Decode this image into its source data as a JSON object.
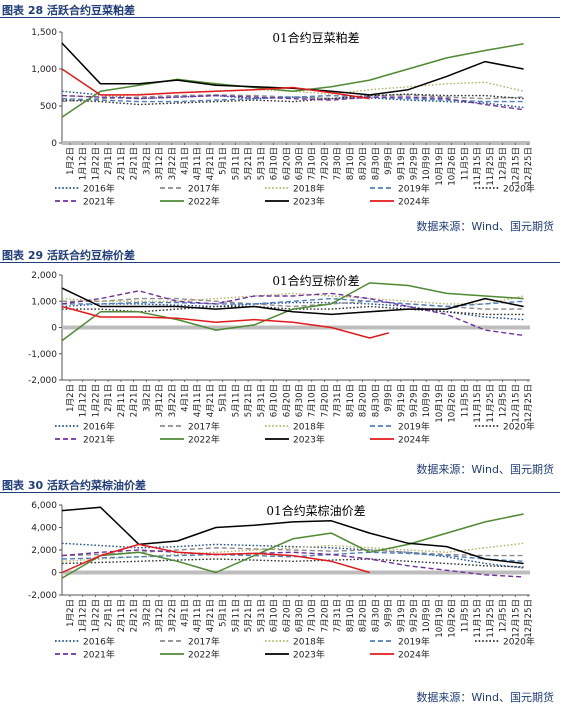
{
  "charts": [
    {
      "fig_label": "图表 28 活跃合约豆菜粕差",
      "source": "数据来源：Wind、国元期货"
    },
    {
      "fig_label": "图表 29 活跃合约豆棕价差",
      "source": "数据来源：Wind、国元期货"
    },
    {
      "fig_label": "图表 30 活跃合约菜棕油价差",
      "source": "数据来源：Wind、国元期货"
    }
  ],
  "chart_data": [
    {
      "type": "line",
      "title": "01合约豆菜粕差",
      "ylim": [
        0,
        1500
      ],
      "yticks": [
        0,
        500,
        1000,
        1500
      ],
      "ytick_labels": [
        "0",
        "500",
        "1,000",
        "1,500"
      ],
      "x_tick_labels": [
        "1月2日",
        "1月12日",
        "1月22日",
        "2月1日",
        "2月11日",
        "2月21日",
        "3月2日",
        "3月12日",
        "3月22日",
        "4月1日",
        "4月11日",
        "4月21日",
        "5月1日",
        "5月11日",
        "5月21日",
        "5月31日",
        "6月10日",
        "6月20日",
        "6月30日",
        "7月10日",
        "7月20日",
        "7月30日",
        "8月10日",
        "8月20日",
        "8月30日",
        "9月9日",
        "9月19日",
        "9月29日",
        "10月9日",
        "10月19日",
        "10月26日",
        "11月5日",
        "11月15日",
        "11月25日",
        "12月5日",
        "12月15日",
        "12月25日"
      ],
      "x": [
        0,
        30,
        60,
        90,
        120,
        150,
        180,
        210,
        240,
        270,
        300,
        330,
        360
      ],
      "series": [
        {
          "name": "2016年",
          "color": "#1f4e9a",
          "style": "dot",
          "values": [
            700,
            650,
            600,
            620,
            640,
            600,
            620,
            600,
            610,
            580,
            560,
            540,
            480
          ]
        },
        {
          "name": "2017年",
          "color": "#8c8c8c",
          "style": "dash",
          "values": [
            560,
            600,
            620,
            640,
            650,
            640,
            620,
            600,
            640,
            650,
            620,
            600,
            620
          ]
        },
        {
          "name": "2018年",
          "color": "#b5b56a",
          "style": "dot",
          "values": [
            640,
            620,
            660,
            680,
            700,
            720,
            700,
            660,
            720,
            760,
            800,
            820,
            700
          ]
        },
        {
          "name": "2019年",
          "color": "#4f7fbf",
          "style": "dash",
          "values": [
            600,
            580,
            560,
            560,
            580,
            600,
            620,
            640,
            620,
            600,
            580,
            560,
            560
          ]
        },
        {
          "name": "2020年",
          "color": "#2f2f2f",
          "style": "dot",
          "values": [
            580,
            560,
            520,
            540,
            560,
            580,
            560,
            600,
            640,
            660,
            640,
            640,
            600
          ]
        },
        {
          "name": "2021年",
          "color": "#7030a0",
          "style": "dash",
          "values": [
            640,
            620,
            600,
            620,
            640,
            620,
            600,
            580,
            620,
            620,
            600,
            520,
            450
          ]
        },
        {
          "name": "2022年",
          "color": "#4f8a32",
          "style": "solid",
          "values": [
            350,
            700,
            780,
            860,
            800,
            750,
            700,
            760,
            850,
            1000,
            1150,
            1250,
            1340
          ]
        },
        {
          "name": "2023年",
          "color": "#000000",
          "style": "solid",
          "values": [
            1350,
            800,
            800,
            850,
            780,
            760,
            740,
            700,
            650,
            720,
            900,
            1100,
            1000
          ]
        },
        {
          "name": "2024年",
          "color": "#e31a1c",
          "style": "solid",
          "values": [
            1000,
            650,
            650,
            680,
            700,
            720,
            750,
            680,
            600
          ],
          "x": [
            0,
            30,
            60,
            90,
            120,
            150,
            180,
            210,
            240
          ]
        }
      ]
    },
    {
      "type": "line",
      "title": "01合约豆棕价差",
      "ylim": [
        -2000,
        2000
      ],
      "yticks": [
        -2000,
        -1000,
        0,
        1000,
        2000
      ],
      "ytick_labels": [
        "-2,000",
        "-1,000",
        "0",
        "1,000",
        "2,000"
      ],
      "x_tick_labels": [
        "1月2日",
        "1月12日",
        "1月22日",
        "2月1日",
        "2月11日",
        "2月21日",
        "3月2日",
        "3月12日",
        "3月22日",
        "4月1日",
        "4月11日",
        "4月21日",
        "5月1日",
        "5月11日",
        "5月21日",
        "5月31日",
        "6月10日",
        "6月20日",
        "6月30日",
        "7月10日",
        "7月20日",
        "7月31日",
        "8月10日",
        "8月20日",
        "8月30日",
        "9月9日",
        "9月19日",
        "9月29日",
        "10月9日",
        "10月19日",
        "10月26日",
        "11月5日",
        "11月15日",
        "11月25日",
        "12月5日",
        "12月15日",
        "12月25日"
      ],
      "x": [
        0,
        30,
        60,
        90,
        120,
        150,
        180,
        210,
        240,
        270,
        300,
        330,
        360
      ],
      "series": [
        {
          "name": "2016年",
          "color": "#1f4e9a",
          "style": "dot",
          "values": [
            800,
            900,
            900,
            850,
            800,
            900,
            950,
            950,
            900,
            800,
            600,
            400,
            300
          ]
        },
        {
          "name": "2017年",
          "color": "#8c8c8c",
          "style": "dash",
          "values": [
            1000,
            1000,
            1100,
            1100,
            1000,
            900,
            800,
            900,
            1000,
            900,
            800,
            700,
            700
          ]
        },
        {
          "name": "2018年",
          "color": "#b5b56a",
          "style": "dot",
          "values": [
            1100,
            1000,
            1000,
            1000,
            1100,
            1200,
            1300,
            1200,
            1100,
            1000,
            900,
            900,
            1200
          ]
        },
        {
          "name": "2019年",
          "color": "#4f7fbf",
          "style": "dash",
          "values": [
            900,
            900,
            950,
            950,
            900,
            900,
            1000,
            1100,
            1000,
            900,
            800,
            900,
            1000
          ]
        },
        {
          "name": "2020年",
          "color": "#2f2f2f",
          "style": "dot",
          "values": [
            700,
            700,
            600,
            700,
            800,
            800,
            700,
            700,
            800,
            700,
            600,
            500,
            500
          ]
        },
        {
          "name": "2021年",
          "color": "#7030a0",
          "style": "dash",
          "values": [
            900,
            1100,
            1400,
            1000,
            900,
            1200,
            1200,
            1300,
            1100,
            800,
            500,
            -100,
            -300
          ]
        },
        {
          "name": "2022年",
          "color": "#4f8a32",
          "style": "solid",
          "values": [
            -500,
            600,
            600,
            300,
            -100,
            100,
            700,
            900,
            1700,
            1600,
            1300,
            1200,
            1100
          ]
        },
        {
          "name": "2023年",
          "color": "#000000",
          "style": "solid",
          "values": [
            1500,
            800,
            800,
            800,
            700,
            800,
            600,
            500,
            600,
            700,
            700,
            1100,
            800
          ]
        },
        {
          "name": "2024年",
          "color": "#e31a1c",
          "style": "solid",
          "values": [
            800,
            400,
            400,
            350,
            200,
            300,
            200,
            0,
            -400,
            -200
          ],
          "x": [
            0,
            30,
            60,
            90,
            120,
            150,
            180,
            210,
            240,
            255
          ]
        }
      ]
    },
    {
      "type": "line",
      "title": "01合约菜棕油价差",
      "ylim": [
        -2000,
        6000
      ],
      "yticks": [
        -2000,
        0,
        2000,
        4000,
        6000
      ],
      "ytick_labels": [
        "-2,000",
        "0",
        "2,000",
        "4,000",
        "6,000"
      ],
      "x_tick_labels": [
        "1月2日",
        "1月12日",
        "1月22日",
        "2月1日",
        "2月11日",
        "2月21日",
        "3月2日",
        "3月12日",
        "3月22日",
        "4月1日",
        "4月11日",
        "4月21日",
        "5月1日",
        "5月11日",
        "5月21日",
        "5月31日",
        "6月10日",
        "6月20日",
        "6月30日",
        "7月10日",
        "7月20日",
        "7月31日",
        "8月10日",
        "8月20日",
        "8月30日",
        "9月9日",
        "9月19日",
        "9月29日",
        "10月9日",
        "10月19日",
        "10月26日",
        "11月5日",
        "11月15日",
        "11月25日",
        "12月5日",
        "12月15日",
        "12月25日"
      ],
      "x": [
        0,
        30,
        60,
        90,
        120,
        150,
        180,
        210,
        240,
        270,
        300,
        330,
        360
      ],
      "series": [
        {
          "name": "2016年",
          "color": "#1f4e9a",
          "style": "dot",
          "values": [
            2600,
            2400,
            2200,
            2300,
            2500,
            2400,
            2300,
            2200,
            2000,
            1800,
            1400,
            800,
            400
          ]
        },
        {
          "name": "2017年",
          "color": "#8c8c8c",
          "style": "dash",
          "values": [
            1500,
            1600,
            1800,
            2000,
            2200,
            2100,
            2000,
            1900,
            2000,
            1800,
            1600,
            1500,
            1500
          ]
        },
        {
          "name": "2018年",
          "color": "#b5b56a",
          "style": "dot",
          "values": [
            1000,
            1200,
            1400,
            1600,
            1800,
            2000,
            2200,
            2400,
            2200,
            2000,
            1800,
            2200,
            2600
          ]
        },
        {
          "name": "2019年",
          "color": "#4f7fbf",
          "style": "dash",
          "values": [
            1200,
            1300,
            1400,
            1500,
            1600,
            1500,
            1400,
            1600,
            1800,
            1700,
            1500,
            1200,
            1000
          ]
        },
        {
          "name": "2020年",
          "color": "#2f2f2f",
          "style": "dot",
          "values": [
            800,
            900,
            1000,
            1100,
            1200,
            1100,
            1000,
            1100,
            1200,
            1000,
            800,
            600,
            500
          ]
        },
        {
          "name": "2021年",
          "color": "#7030a0",
          "style": "dash",
          "values": [
            1500,
            1800,
            2000,
            1800,
            1600,
            1700,
            1800,
            1600,
            1200,
            600,
            200,
            -200,
            -400
          ]
        },
        {
          "name": "2022年",
          "color": "#4f8a32",
          "style": "solid",
          "values": [
            -500,
            1500,
            1800,
            1000,
            0,
            1500,
            3000,
            3500,
            1800,
            2500,
            3500,
            4500,
            5200
          ]
        },
        {
          "name": "2023年",
          "color": "#000000",
          "style": "solid",
          "values": [
            5500,
            5800,
            2500,
            2800,
            4000,
            4200,
            4500,
            4600,
            3500,
            2600,
            2300,
            1200,
            800
          ]
        },
        {
          "name": "2024年",
          "color": "#e31a1c",
          "style": "solid",
          "values": [
            0,
            1500,
            2500,
            1800,
            1600,
            1700,
            1500,
            1000,
            0
          ],
          "x": [
            0,
            30,
            60,
            90,
            120,
            150,
            180,
            210,
            240
          ]
        }
      ]
    }
  ]
}
